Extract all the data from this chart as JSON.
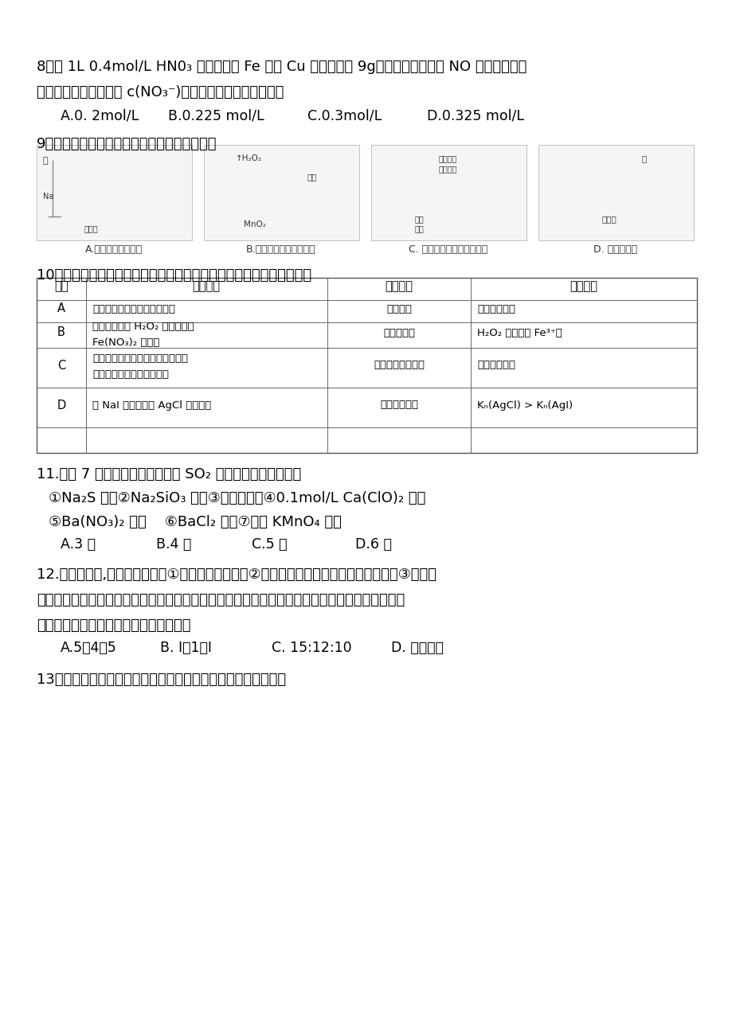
{
  "background_color": "#ffffff",
  "q8_line1": "8．向 1L 0.4mol/L HN0₃ 溶液中加入 Fe 粉和 Cu 粉的混合物 9g，充分反应，放出 NO 气体且金属有",
  "q8_line2": "剩余。则反应后溶液中 c(NO₃⁻)为（忽略溶液体积的变化）",
  "q8_opts": [
    "A.0. 2mol/L",
    "B.0.225 mol/L",
    "C.0.3mol/L",
    "D.0.325 mol/L"
  ],
  "q9_line1": "9．下列装置或操作正确且能达到实验目的的是",
  "q9_caption_A": "A.验证反应的热效应",
  "q9_caption_B": "B.定量测定化学反应速率",
  "q9_caption_C": "C. 制备并检测氢气的可燃性",
  "q9_caption_D": "D. 液硫酸稀释",
  "q10_line1": "10．下列实验中，对应的现象以及结论都正确且两者具有因果关系的是",
  "table_headers": [
    "选项",
    "实　　验",
    "现　　象",
    "结　　论"
  ],
  "table_row_A_exp": "将红色纸条放入到新制氯水中",
  "table_row_A_phen": "纸条褪色",
  "table_row_A_conc": "氯气有漂白性",
  "table_row_B_exp1": "将硫酸酸化的 H₂O₂ 溶液滴入到",
  "table_row_B_exp2": "Fe(NO₃)₂ 溶液中",
  "table_row_B_phen": "溶液变黄色",
  "table_row_B_conc": "H₂O₂ 氧化性比 Fe³⁺强",
  "table_row_C_exp1": "用坩埚钳夹住一小块用砂纸仔细打",
  "table_row_C_exp2": "磨过的铝箔在酒精灯上加热",
  "table_row_C_phen": "铝熔化且滴落下来",
  "table_row_C_conc": "铝的熔点较低",
  "table_row_D_exp": "将 NaI 溶液加入到 AgCl 悬浊液中",
  "table_row_D_phen": "产生黄色沉淀",
  "table_row_D_conc": "Kₙ(AgCl) > Kₙ(AgI)",
  "q11_line1": "11.下列 7 种溶液中，通入足量的 SO₂ 气体，溶液变浑浊的有",
  "q11_line2": "①Na₂S 溶液②Na₂SiO₃ 溶液③澄清石灰水④0.1mol/L Ca(ClO)₂ 溶液",
  "q11_line3": "⑤Ba(NO₃)₂ 溶液    ⑥BaCl₂ 溶液⑦酸性 KMnO₄ 溶液",
  "q11_opts": [
    "A.3 种",
    "B.4 种",
    "C.5 种",
    "D.6 种"
  ],
  "q12_line1": "12.标准状况下,三个烧瓶分别盛①混有空气的氢气、②等体积的二氧化氮与氧气的混合气、③二氧化",
  "q12_line2": "氮，将它们分别倒置于盛足量水的水槽中，当水进入烧瓶中，并使气体充分溶解，假定烧瓶中溶液",
  "q12_line3": "无损失，所得溶液的物质的量浓度之比为",
  "q12_opts": [
    "A.5：4：5",
    "B. I：1：I",
    "C. 15:12:10",
    "D. 无法计算"
  ],
  "q13_line1": "13．工业上制备高纯硅有多种方法，其中的一种工艺流程如下："
}
